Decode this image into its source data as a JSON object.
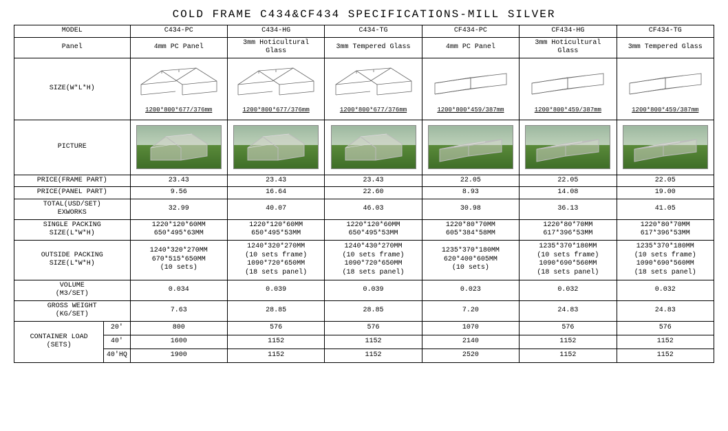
{
  "title": "COLD FRAME C434&CF434 SPECIFICATIONS-MILL SILVER",
  "headers": {
    "model": "MODEL",
    "panel": "Panel",
    "size": "SIZE(W*L*H)",
    "picture": "PICTURE",
    "price_frame": "PRICE(FRAME PART)",
    "price_panel": "PRICE(PANEL PART)",
    "total": "TOTAL(USD/SET)\nEXWORKS",
    "single_pack": "SINGLE PACKING\nSIZE(L*W*H)",
    "outside_pack": "OUTSIDE PACKING\nSIZE(L*W*H)",
    "volume": "VOLUME\n(M3/SET)",
    "gross": "GROSS WEIGHT\n(KG/SET)",
    "container": "CONTAINER LOAD\n(SETS)",
    "c20": "20'",
    "c40": "40'",
    "c40hq": "40'HQ"
  },
  "cols": [
    {
      "model": "C434-PC",
      "panel": "4mm PC Panel",
      "shape": "peak",
      "dim": "1200*800*677/376mm",
      "price_frame": "23.43",
      "price_panel": "9.56",
      "total": "32.99",
      "single_pack": "1220*120*60MM\n650*495*63MM",
      "outside_pack": "1240*320*270MM\n670*515*650MM\n(10 sets)",
      "volume": "0.034",
      "gross": "7.63",
      "c20": "800",
      "c40": "1600",
      "c40hq": "1900"
    },
    {
      "model": "C434-HG",
      "panel": "3mm Hoticultural\nGlass",
      "shape": "peak",
      "dim": "1200*800*677/376mm",
      "price_frame": "23.43",
      "price_panel": "16.64",
      "total": "40.07",
      "single_pack": "1220*120*60MM\n650*495*53MM",
      "outside_pack": "1240*320*270MM\n(10 sets frame)\n1090*720*650MM\n(18 sets panel)",
      "volume": "0.039",
      "gross": "28.85",
      "c20": "576",
      "c40": "1152",
      "c40hq": "1152"
    },
    {
      "model": "C434-TG",
      "panel": "3mm Tempered Glass",
      "shape": "peak",
      "dim": "1200*800*677/376mm",
      "price_frame": "23.43",
      "price_panel": "22.60",
      "total": "46.03",
      "single_pack": "1220*120*60MM\n650*495*53MM",
      "outside_pack": "1240*430*270MM\n(10 sets frame)\n1090*720*650MM\n(18 sets panel)",
      "volume": "0.039",
      "gross": "28.85",
      "c20": "576",
      "c40": "1152",
      "c40hq": "1152"
    },
    {
      "model": "CF434-PC",
      "panel": "4mm PC Panel",
      "shape": "flat",
      "dim": "1200*800*459/387mm",
      "price_frame": "22.05",
      "price_panel": "8.93",
      "total": "30.98",
      "single_pack": "1220*80*70MM\n605*384*58MM",
      "outside_pack": "1235*370*180MM\n620*400*605MM\n(10 sets)",
      "volume": "0.023",
      "gross": "7.20",
      "c20": "1070",
      "c40": "2140",
      "c40hq": "2520"
    },
    {
      "model": "CF434-HG",
      "panel": "3mm Hoticultural\nGlass",
      "shape": "flat",
      "dim": "1200*800*459/387mm",
      "price_frame": "22.05",
      "price_panel": "14.08",
      "total": "36.13",
      "single_pack": "1220*80*70MM\n617*396*53MM",
      "outside_pack": "1235*370*180MM\n(10 sets frame)\n1090*690*560MM\n(18 sets panel)",
      "volume": "0.032",
      "gross": "24.83",
      "c20": "576",
      "c40": "1152",
      "c40hq": "1152"
    },
    {
      "model": "CF434-TG",
      "panel": "3mm Tempered Glass",
      "shape": "flat",
      "dim": "1200*800*459/387mm",
      "price_frame": "22.05",
      "price_panel": "19.00",
      "total": "41.05",
      "single_pack": "1220*80*70MM\n617*396*53MM",
      "outside_pack": "1235*370*180MM\n(10 sets frame)\n1090*690*560MM\n(18 sets panel)",
      "volume": "0.032",
      "gross": "24.83",
      "c20": "576",
      "c40": "1152",
      "c40hq": "1152"
    }
  ],
  "colors": {
    "border": "#000000",
    "bg": "#ffffff",
    "grass1": "#5a8a3a",
    "grass2": "#3f6e28",
    "sky1": "#9db8a0",
    "frame_fill": "#d8d8d0",
    "diagram_stroke": "#666666"
  }
}
